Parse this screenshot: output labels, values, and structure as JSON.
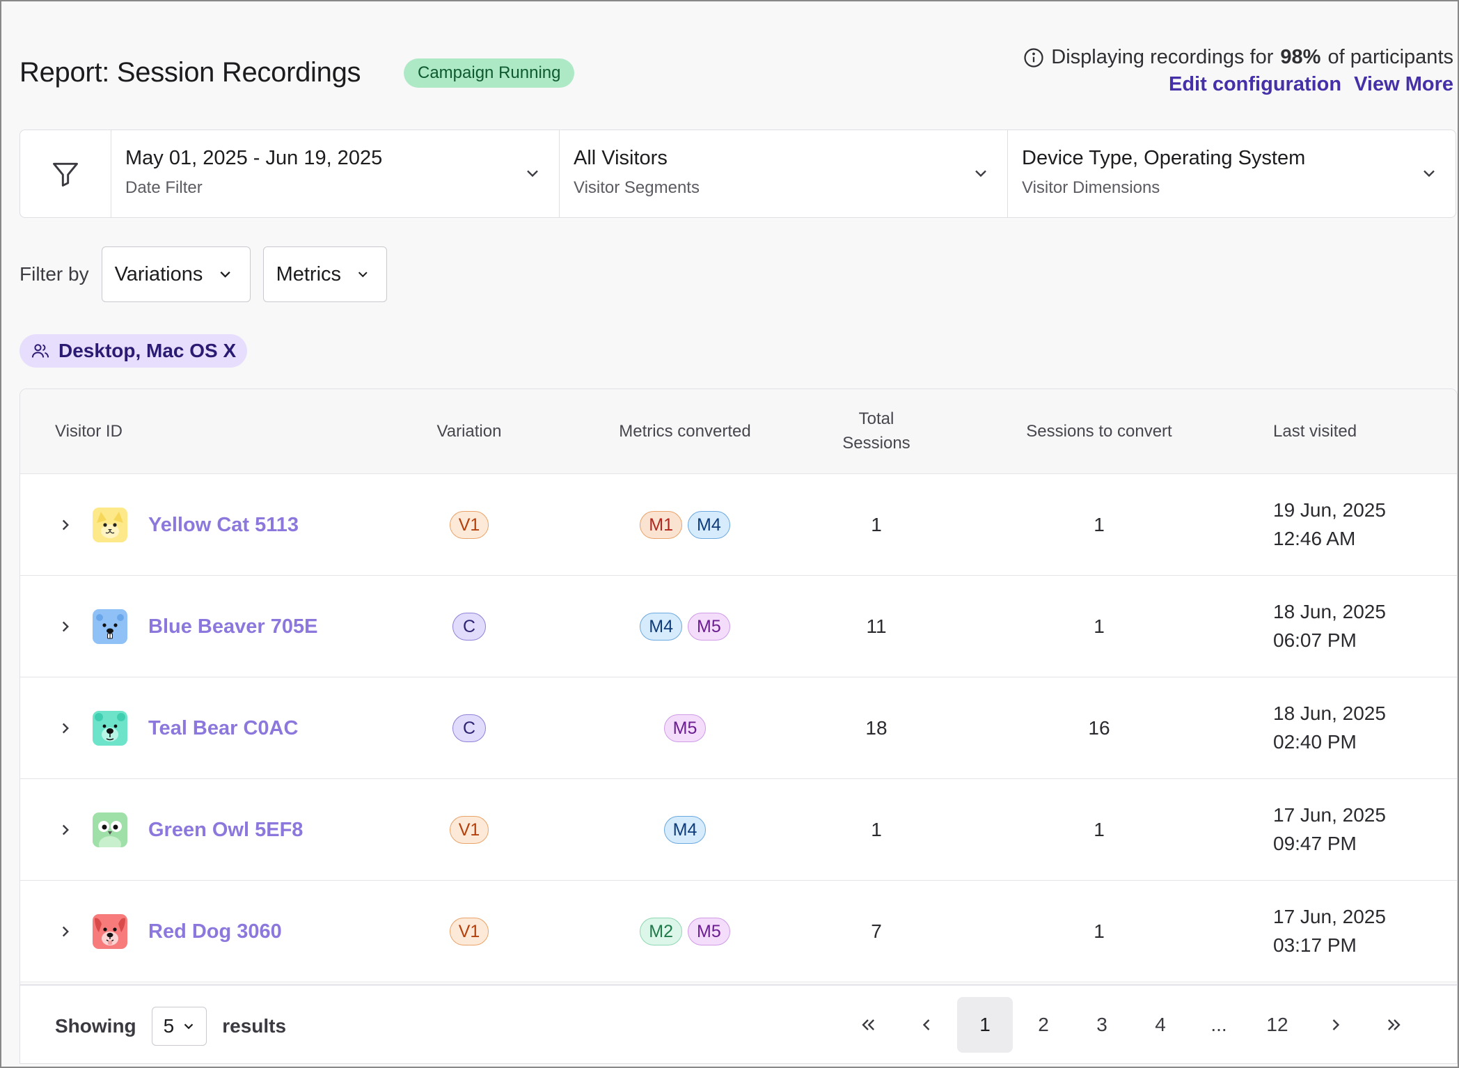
{
  "header": {
    "title": "Report: Session Recordings",
    "status_badge": "Campaign Running",
    "info_prefix": "Displaying recordings for",
    "info_percent": "98%",
    "info_suffix": "of participants",
    "edit_link": "Edit configuration",
    "view_more_link": "View More"
  },
  "filters": {
    "date": {
      "value": "May 01, 2025 - Jun 19, 2025",
      "label": "Date Filter"
    },
    "segments": {
      "value": "All Visitors",
      "label": "Visitor Segments"
    },
    "dimensions": {
      "value": "Device Type, Operating System",
      "label": "Visitor Dimensions"
    }
  },
  "filter_by": {
    "label": "Filter by",
    "variations": "Variations",
    "metrics": "Metrics"
  },
  "segment_chip": "Desktop, Mac OS X",
  "table": {
    "columns": {
      "visitor_id": "Visitor ID",
      "variation": "Variation",
      "metrics_converted": "Metrics converted",
      "total_sessions_1": "Total",
      "total_sessions_2": "Sessions",
      "sessions_to_convert": "Sessions to convert",
      "last_visited": "Last visited"
    },
    "rows": [
      {
        "name": "Yellow Cat 5113",
        "avatar": "yellow-cat-avatar",
        "variation": "V1",
        "metrics": [
          "M1",
          "M4"
        ],
        "total": "1",
        "to_convert": "1",
        "date": "19 Jun, 2025",
        "time": "12:46 AM"
      },
      {
        "name": "Blue Beaver 705E",
        "avatar": "blue-beaver-avatar",
        "variation": "C",
        "metrics": [
          "M4",
          "M5"
        ],
        "total": "11",
        "to_convert": "1",
        "date": "18 Jun, 2025",
        "time": "06:07 PM"
      },
      {
        "name": "Teal Bear C0AC",
        "avatar": "teal-bear-avatar",
        "variation": "C",
        "metrics": [
          "M5"
        ],
        "total": "18",
        "to_convert": "16",
        "date": "18 Jun, 2025",
        "time": "02:40 PM"
      },
      {
        "name": "Green Owl 5EF8",
        "avatar": "green-owl-avatar",
        "variation": "V1",
        "metrics": [
          "M4"
        ],
        "total": "1",
        "to_convert": "1",
        "date": "17 Jun, 2025",
        "time": "09:47 PM"
      },
      {
        "name": "Red Dog 3060",
        "avatar": "red-dog-avatar",
        "variation": "V1",
        "metrics": [
          "M2",
          "M5"
        ],
        "total": "7",
        "to_convert": "1",
        "date": "17 Jun, 2025",
        "time": "03:17 PM"
      }
    ]
  },
  "footer": {
    "showing_label": "Showing",
    "page_size": "5",
    "results_label": "results",
    "pages": [
      "1",
      "2",
      "3",
      "4",
      "...",
      "12"
    ],
    "current_page": "1"
  },
  "colors": {
    "accent": "#4530a8",
    "visitor_link": "#8c78dc",
    "status_green": "#aee9c6",
    "avatar_yellow": "#fde98a",
    "avatar_blue": "#8fc1f7",
    "avatar_teal": "#6de3c9",
    "avatar_green": "#9fe0a8",
    "avatar_red": "#f77b7b"
  }
}
